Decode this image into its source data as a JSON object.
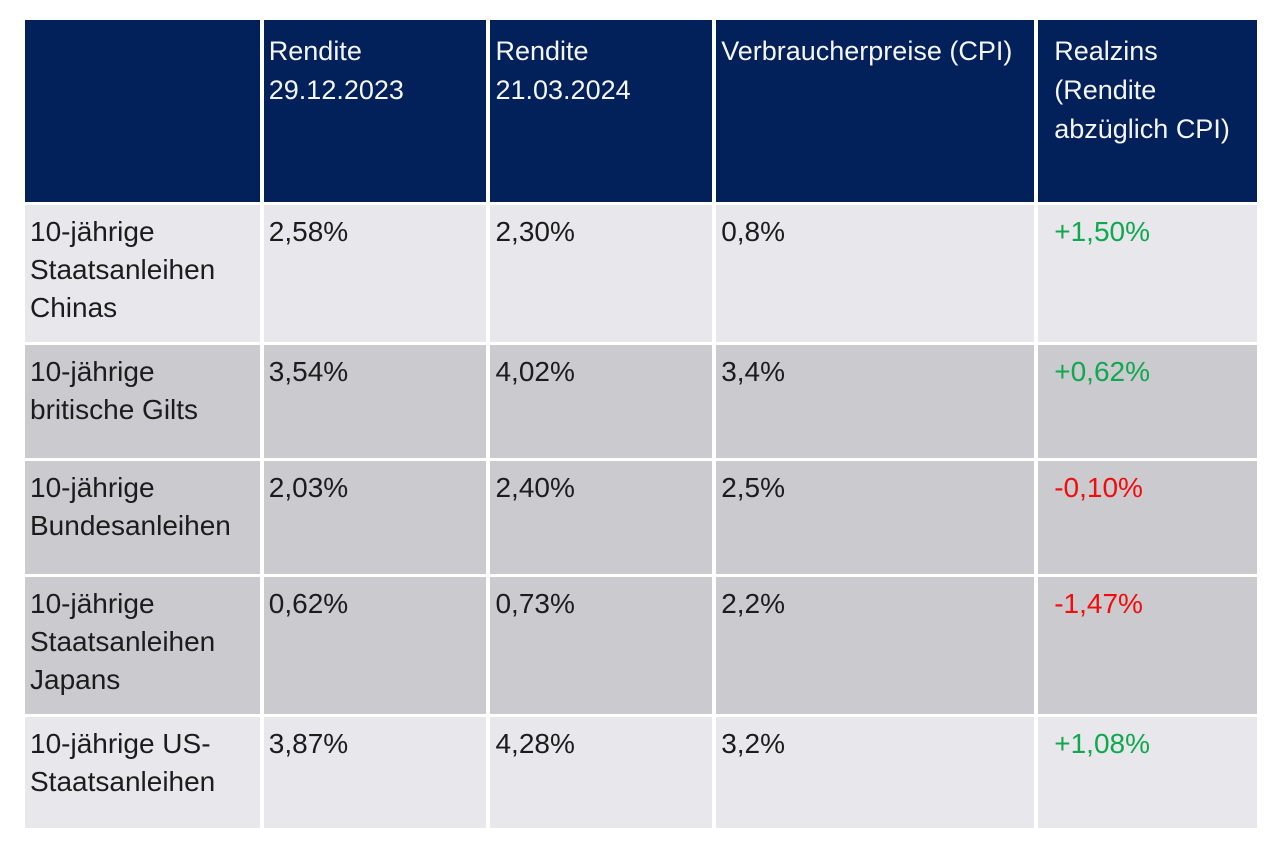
{
  "colors": {
    "header_bg": "#02215a",
    "header_text": "#f5f5f7",
    "row_light_bg": "#e8e7eb",
    "row_dark_bg": "#cacacf",
    "body_text": "#1c1c1c",
    "positive": "#0fa84e",
    "negative": "#f20c0c",
    "page_bg": "#ffffff"
  },
  "table": {
    "columns": [
      {
        "label": ""
      },
      {
        "label": "Rendite 29.12.2023"
      },
      {
        "label": "Rendite 21.03.2024"
      },
      {
        "label": "Verbraucherpreise (CPI)"
      },
      {
        "label": "Realzins (Rendite abzüglich CPI)"
      }
    ],
    "rows": [
      {
        "label": "10-jährige Staatsanleihen Chinas",
        "rendite_2023": "2,58%",
        "rendite_2024": "2,30%",
        "cpi": "0,8%",
        "realzins": "+1,50%",
        "realzins_trend": "positive",
        "tone": "light"
      },
      {
        "label": "10-jährige britische Gilts",
        "rendite_2023": "3,54%",
        "rendite_2024": "4,02%",
        "cpi": "3,4%",
        "realzins": "+0,62%",
        "realzins_trend": "positive",
        "tone": "dark"
      },
      {
        "label": "10-jährige Bundesanleihen",
        "rendite_2023": "2,03%",
        "rendite_2024": "2,40%",
        "cpi": "2,5%",
        "realzins": "-0,10%",
        "realzins_trend": "negative",
        "tone": "dark"
      },
      {
        "label": "10-jährige Staatsanleihen Japans",
        "rendite_2023": "0,62%",
        "rendite_2024": "0,73%",
        "cpi": "2,2%",
        "realzins": "-1,47%",
        "realzins_trend": "negative",
        "tone": "dark"
      },
      {
        "label": "10-jährige US-Staatsanleihen",
        "rendite_2023": "3,87%",
        "rendite_2024": "4,28%",
        "cpi": "3,2%",
        "realzins": "+1,08%",
        "realzins_trend": "positive",
        "tone": "light"
      }
    ]
  },
  "chart_data": {
    "type": "table",
    "title": "",
    "columns": [
      "",
      "Rendite 29.12.2023",
      "Rendite 21.03.2024",
      "Verbraucherpreise (CPI)",
      "Realzins (Rendite abzüglich CPI)"
    ],
    "rows": [
      [
        "10-jährige Staatsanleihen Chinas",
        "2,58%",
        "2,30%",
        "0,8%",
        "+1,50%"
      ],
      [
        "10-jährige britische Gilts",
        "3,54%",
        "4,02%",
        "3,4%",
        "+0,62%"
      ],
      [
        "10-jährige Bundesanleihen",
        "2,03%",
        "2,40%",
        "2,5%",
        "-0,10%"
      ],
      [
        "10-jährige Staatsanleihen Japans",
        "0,62%",
        "0,73%",
        "2,2%",
        "-1,47%"
      ],
      [
        "10-jährige US-Staatsanleihen",
        "3,87%",
        "4,28%",
        "3,2%",
        "+1,08%"
      ]
    ],
    "notes": "Realzins values colored green when positive, red when negative"
  }
}
